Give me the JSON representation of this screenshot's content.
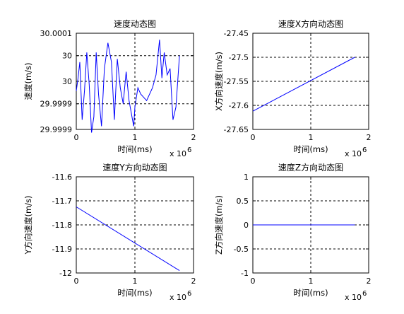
{
  "colors": {
    "line": "#0000ff",
    "axes": "#000000",
    "grid": "#000000",
    "background": "#ffffff"
  },
  "chart_data": [
    {
      "type": "line",
      "title": "速度动态图",
      "xlabel": "时间(ms)",
      "ylabel": "速度(m/s)",
      "x_multiplier_label": "x 10",
      "x_multiplier_exp": "6",
      "xlim": [
        0,
        2
      ],
      "ylim": [
        29.9998,
        30.0001
      ],
      "xticks": [
        "0",
        "1",
        "2"
      ],
      "yticks": [
        "29.9999",
        "29.9999",
        "30",
        "30",
        "30.0001"
      ],
      "ytick_values": [
        29.9998,
        29.99988,
        29.99995,
        30.00003,
        30.0001
      ],
      "grid": true,
      "series": [
        {
          "x": [
            0,
            0.03,
            0.06,
            0.1,
            0.14,
            0.18,
            0.22,
            0.26,
            0.3,
            0.34,
            0.38,
            0.43,
            0.48,
            0.54,
            0.6,
            0.65,
            0.7,
            0.75,
            0.8,
            0.85,
            0.9,
            0.95,
            0.98,
            1.0,
            1.05,
            1.1,
            1.2,
            1.3,
            1.36,
            1.42,
            1.46,
            1.5,
            1.55,
            1.6,
            1.65,
            1.7,
            1.76
          ],
          "y": [
            29.99992,
            29.99996,
            30.00001,
            29.99983,
            29.99992,
            30.00004,
            29.99994,
            29.99979,
            29.99984,
            30.00004,
            29.99991,
            29.99981,
            29.99999,
            30.00007,
            30.00001,
            29.99983,
            30.00002,
            29.99993,
            29.99988,
            29.99998,
            29.99989,
            29.99984,
            29.99981,
            29.99987,
            29.99993,
            29.99991,
            29.99989,
            29.99993,
            29.99997,
            30.00008,
            29.99996,
            30.00004,
            29.99997,
            29.99999,
            29.99983,
            29.99987,
            30.00003
          ]
        }
      ]
    },
    {
      "type": "line",
      "title": "速度X方向动态图",
      "xlabel": "时间(ms)",
      "ylabel": "X方向速度(m/s)",
      "x_multiplier_label": "x 10",
      "x_multiplier_exp": "6",
      "xlim": [
        0,
        2
      ],
      "ylim": [
        -27.65,
        -27.45
      ],
      "xticks": [
        "0",
        "1",
        "2"
      ],
      "yticks": [
        "-27.65",
        "-27.6",
        "-27.55",
        "-27.5",
        "-27.45"
      ],
      "ytick_values": [
        -27.65,
        -27.6,
        -27.55,
        -27.5,
        -27.45
      ],
      "grid": true,
      "series": [
        {
          "x": [
            0,
            1.76
          ],
          "y": [
            -27.612,
            -27.5
          ]
        }
      ]
    },
    {
      "type": "line",
      "title": "速度Y方向动态图",
      "xlabel": "时间(ms)",
      "ylabel": "Y方向速度(m/s)",
      "x_multiplier_label": "x 10",
      "x_multiplier_exp": "6",
      "xlim": [
        0,
        2
      ],
      "ylim": [
        -12,
        -11.6
      ],
      "xticks": [
        "0",
        "1",
        "2"
      ],
      "yticks": [
        "-12",
        "-11.9",
        "-11.8",
        "-11.7",
        "-11.6"
      ],
      "ytick_values": [
        -12,
        -11.9,
        -11.8,
        -11.7,
        -11.6
      ],
      "grid": true,
      "series": [
        {
          "x": [
            0,
            1.76
          ],
          "y": [
            -11.725,
            -11.99
          ]
        }
      ]
    },
    {
      "type": "line",
      "title": "速度Z方向动态图",
      "xlabel": "时间(ms)",
      "ylabel": "Z方向速度(m/s)",
      "x_multiplier_label": "x 10",
      "x_multiplier_exp": "6",
      "xlim": [
        0,
        2
      ],
      "ylim": [
        -1,
        1
      ],
      "xticks": [
        "0",
        "1",
        "2"
      ],
      "yticks": [
        "-1",
        "-0.5",
        "0",
        "0.5",
        "1"
      ],
      "ytick_values": [
        -1,
        -0.5,
        0,
        0.5,
        1
      ],
      "grid": true,
      "series": [
        {
          "x": [
            0,
            1.76
          ],
          "y": [
            0,
            0
          ]
        }
      ]
    }
  ]
}
